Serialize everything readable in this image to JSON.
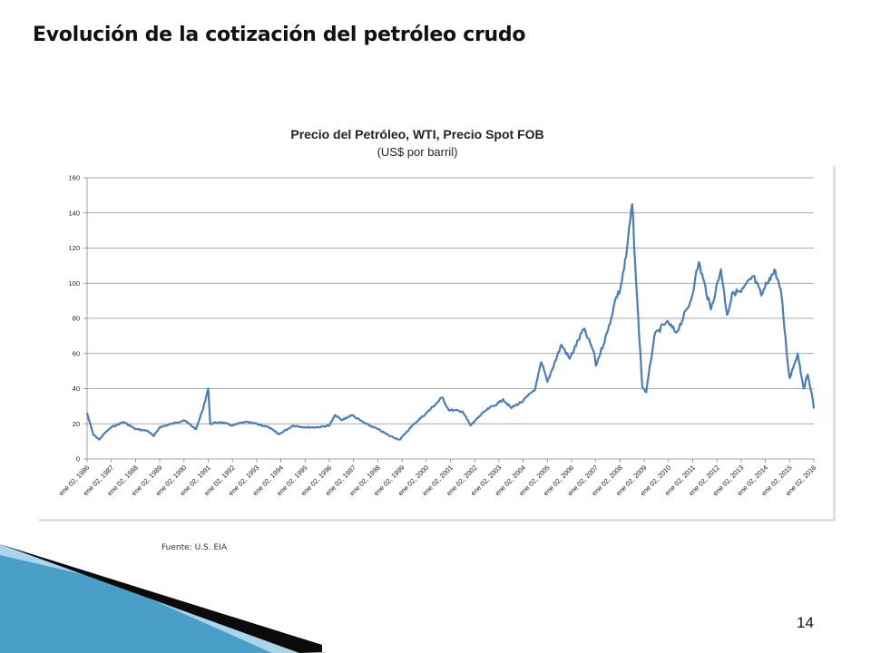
{
  "slide": {
    "title": "Evolución de la cotización del petróleo crudo",
    "source": "Fuente: U.S. EIA",
    "page_number": "14"
  },
  "colors": {
    "series": "#4a7ebb",
    "grid": "#8c8c8c",
    "decor_dark": "#0b0b0b",
    "decor_blue": "#4a9fc8",
    "decor_light": "#a9d4ea"
  },
  "chart_data": {
    "type": "line",
    "title": "Precio del Petróleo, WTI, Precio Spot FOB",
    "subtitle": "(US$ por barril)",
    "xlabel": "",
    "ylabel": "",
    "ylim": [
      0,
      160
    ],
    "yticks": [
      0,
      20,
      40,
      60,
      80,
      100,
      120,
      140,
      160
    ],
    "grid": true,
    "legend": "none",
    "x_tick_labels": [
      "ene 02, 1986",
      "ene 02, 1987",
      "ene 02, 1988",
      "ene 02, 1989",
      "ene 02, 1990",
      "ene 02, 1991",
      "ene 02, 1992",
      "ene 02, 1993",
      "ene 02, 1994",
      "ene 02, 1995",
      "ene 02, 1996",
      "ene 02, 1997",
      "ene 02, 1998",
      "ene 02, 1999",
      "ene 02, 2000",
      "ene 02, 2001",
      "ene 02, 2002",
      "ene 02, 2003",
      "ene 02, 2004",
      "ene 02, 2005",
      "ene 02, 2006",
      "ene 02, 2007",
      "ene 02, 2008",
      "ene 02, 2009",
      "ene 02, 2010",
      "ene 02, 2011",
      "ene 02, 2012",
      "ene 02, 2013",
      "ene 02, 2014",
      "ene 02, 2015",
      "ene 02, 2016"
    ],
    "series": [
      {
        "x": [
          "1986-01",
          "1986-04",
          "1986-07",
          "1986-10",
          "1987-01",
          "1987-07",
          "1988-01",
          "1988-07",
          "1988-10",
          "1989-01",
          "1989-07",
          "1990-01",
          "1990-07",
          "1990-10",
          "1991-01",
          "1991-02",
          "1991-07",
          "1992-01",
          "1992-07",
          "1993-01",
          "1993-07",
          "1993-12",
          "1994-07",
          "1995-01",
          "1995-07",
          "1996-01",
          "1996-04",
          "1996-07",
          "1996-12",
          "1997-07",
          "1998-01",
          "1998-07",
          "1998-12",
          "1999-03",
          "1999-07",
          "2000-01",
          "2000-09",
          "2000-12",
          "2001-07",
          "2001-11",
          "2002-03",
          "2002-07",
          "2003-01",
          "2003-03",
          "2003-07",
          "2004-01",
          "2004-07",
          "2004-10",
          "2005-01",
          "2005-08",
          "2005-12",
          "2006-07",
          "2006-12",
          "2007-01",
          "2007-07",
          "2007-11",
          "2008-01",
          "2008-04",
          "2008-07",
          "2008-09",
          "2008-12",
          "2009-02",
          "2009-06",
          "2009-12",
          "2010-05",
          "2010-12",
          "2011-04",
          "2011-10",
          "2012-03",
          "2012-06",
          "2012-09",
          "2013-01",
          "2013-07",
          "2013-11",
          "2014-03",
          "2014-06",
          "2014-09",
          "2014-12",
          "2015-01",
          "2015-05",
          "2015-08",
          "2015-10",
          "2015-12",
          "2016-01"
        ],
        "values": [
          26,
          14,
          11,
          15,
          18,
          21,
          17,
          16,
          13,
          18,
          20,
          22,
          17,
          27,
          40,
          20,
          21,
          19,
          21,
          20,
          18,
          14,
          19,
          18,
          18,
          19,
          25,
          22,
          25,
          20,
          17,
          13,
          11,
          15,
          20,
          26,
          35,
          28,
          27,
          19,
          24,
          28,
          32,
          34,
          29,
          33,
          40,
          55,
          44,
          65,
          57,
          74,
          61,
          53,
          73,
          92,
          96,
          115,
          145,
          100,
          41,
          38,
          70,
          78,
          72,
          90,
          112,
          85,
          108,
          82,
          95,
          95,
          104,
          93,
          103,
          107,
          93,
          55,
          46,
          60,
          40,
          48,
          37,
          29
        ]
      }
    ]
  }
}
